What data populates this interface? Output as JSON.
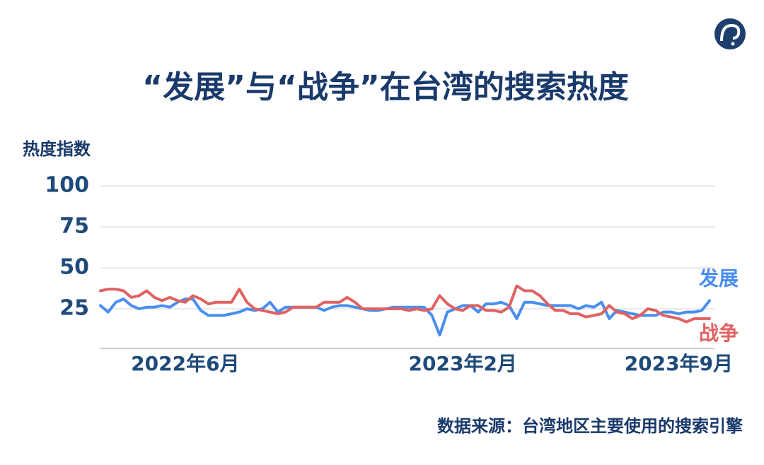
{
  "chart_data": {
    "type": "line",
    "title": "“发展”与“战争”在台湾的搜索热度",
    "y_label": "热度指数",
    "source": "数据来源：台湾地区主要使用的搜索引擎",
    "categories": [
      null,
      null,
      null,
      null,
      null,
      null,
      null,
      null,
      null,
      null,
      null,
      "2022年6月",
      null,
      null,
      null,
      null,
      null,
      null,
      null,
      null,
      null,
      null,
      null,
      null,
      null,
      null,
      null,
      null,
      null,
      null,
      null,
      null,
      null,
      null,
      null,
      null,
      null,
      null,
      null,
      null,
      null,
      null,
      null,
      null,
      null,
      null,
      null,
      "2023年2月",
      null,
      null,
      null,
      null,
      null,
      null,
      null,
      null,
      null,
      null,
      null,
      null,
      null,
      null,
      null,
      null,
      null,
      null,
      null,
      null,
      null,
      null,
      null,
      null,
      null,
      null,
      null,
      "2023年9月",
      null,
      null,
      null,
      null
    ],
    "series": [
      {
        "name": "发展",
        "color": "#4a8ef0",
        "values": [
          27,
          23,
          29,
          31,
          27,
          25,
          26,
          26,
          27,
          26,
          29,
          31,
          31,
          24,
          21,
          21,
          21,
          22,
          23,
          25,
          24,
          25,
          29,
          23,
          26,
          26,
          26,
          26,
          26,
          24,
          26,
          27,
          27,
          26,
          25,
          24,
          24,
          25,
          26,
          26,
          26,
          26,
          26,
          21,
          9,
          23,
          25,
          27,
          27,
          23,
          28,
          28,
          29,
          27,
          19,
          29,
          29,
          28,
          27,
          27,
          27,
          27,
          25,
          27,
          26,
          29,
          19,
          24,
          23,
          22,
          21,
          21,
          21,
          23,
          23,
          22,
          23,
          23,
          24,
          30
        ]
      },
      {
        "name": "战争",
        "color": "#e06262",
        "values": [
          36,
          37,
          37,
          36,
          32,
          33,
          36,
          32,
          30,
          32,
          30,
          29,
          33,
          31,
          28,
          29,
          29,
          29,
          37,
          29,
          25,
          24,
          23,
          22,
          23,
          26,
          26,
          26,
          26,
          29,
          29,
          29,
          32,
          29,
          25,
          25,
          25,
          25,
          25,
          25,
          24,
          25,
          24,
          25,
          33,
          28,
          25,
          24,
          27,
          27,
          24,
          24,
          23,
          26,
          39,
          36,
          36,
          33,
          28,
          24,
          24,
          22,
          22,
          20,
          21,
          22,
          27,
          23,
          22,
          19,
          21,
          25,
          24,
          21,
          20,
          19,
          17,
          19,
          19,
          19
        ]
      }
    ],
    "ylim": [
      0,
      100
    ],
    "yticks": [
      25,
      50,
      75,
      100
    ],
    "grid": true
  }
}
